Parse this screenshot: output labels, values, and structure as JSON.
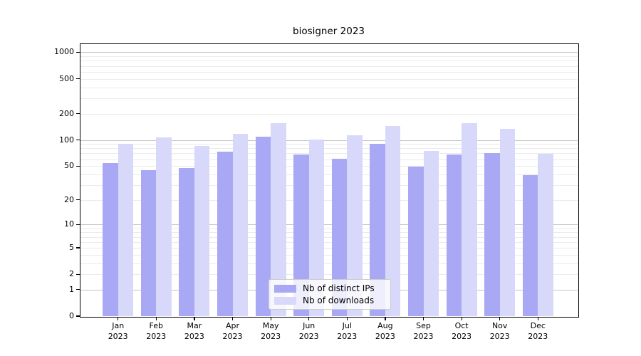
{
  "chart_data": {
    "type": "bar",
    "title": "biosigner 2023",
    "categories": [
      "Jan",
      "Feb",
      "Mar",
      "Apr",
      "May",
      "Jun",
      "Jul",
      "Aug",
      "Sep",
      "Oct",
      "Nov",
      "Dec"
    ],
    "year_label": "2023",
    "series": [
      {
        "name": "Nb of distinct IPs",
        "color": "#a8a8f5",
        "values": [
          54,
          45,
          47,
          73,
          108,
          68,
          61,
          91,
          49,
          68,
          71,
          39
        ]
      },
      {
        "name": "Nb of downloads",
        "color": "#d8d8fa",
        "values": [
          91,
          106,
          86,
          118,
          155,
          101,
          114,
          143,
          75,
          155,
          134,
          69
        ]
      }
    ],
    "y_axis": {
      "scale": "log10(value+1)",
      "ticks": [
        0,
        1,
        2,
        5,
        10,
        20,
        50,
        100,
        200,
        500,
        1000
      ],
      "major_gridlines": [
        1,
        10,
        100,
        1000
      ],
      "ylim_bottom": 0
    },
    "xlabel": "",
    "ylabel": "",
    "grid": "on",
    "legend_position": "lower center"
  },
  "colors": {
    "background": "#ffffff",
    "spine": "#000000",
    "major_grid": "#c4c4c4",
    "minor_grid": "#ebebeb",
    "text": "#000000",
    "legend_border": "#cccccc"
  }
}
